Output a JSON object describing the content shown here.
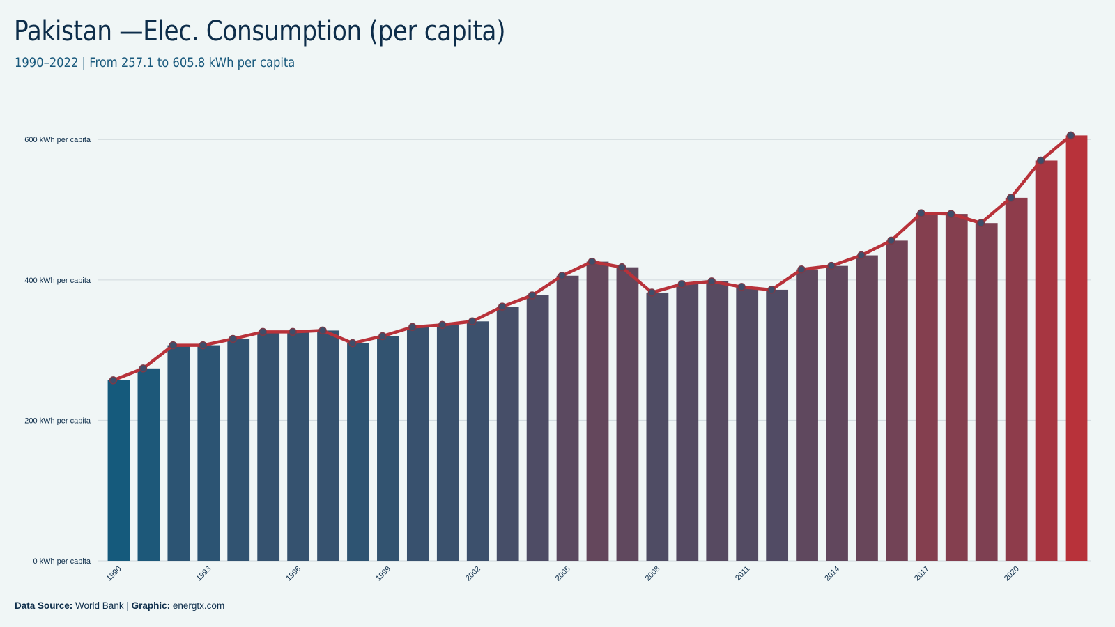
{
  "chart_data": {
    "type": "bar",
    "title": "Pakistan —Elec. Consumption (per capita)",
    "subtitle": "1990–2022 | From 257.1 to 605.8 kWh per capita",
    "x": [
      1990,
      1991,
      1992,
      1993,
      1994,
      1995,
      1996,
      1997,
      1998,
      1999,
      2000,
      2001,
      2002,
      2003,
      2004,
      2005,
      2006,
      2007,
      2008,
      2009,
      2010,
      2011,
      2012,
      2013,
      2014,
      2015,
      2016,
      2017,
      2018,
      2019,
      2020,
      2021,
      2022
    ],
    "x_tick_labels": [
      "1990",
      "1993",
      "1996",
      "1999",
      "2002",
      "2005",
      "2008",
      "2011",
      "2014",
      "2017",
      "2020"
    ],
    "series": [
      {
        "values": [
          257.1,
          274,
          307,
          307,
          316,
          326,
          326,
          328,
          310,
          320,
          333,
          336,
          341,
          362,
          378,
          406,
          426,
          418,
          382,
          394,
          398,
          390,
          386,
          415,
          420,
          435,
          456,
          495,
          494,
          481,
          517,
          570,
          605.8
        ]
      }
    ],
    "overlay_line": true,
    "y_ticks": [
      0,
      200,
      400,
      600
    ],
    "y_tick_labels": [
      "0 kWh per capita",
      "200 kWh per capita",
      "400 kWh per capita",
      "600 kWh per capita"
    ],
    "ylim": [
      0,
      630
    ],
    "grid": "horizontal",
    "xlabel": "",
    "ylabel": ""
  },
  "colors": {
    "background": "#f0f6f6",
    "gradient_start": "#155a7c",
    "gradient_end": "#b8323a",
    "line": "#b8323a",
    "marker_fill": "#3e4e6a",
    "gridline": "#cfd8dc",
    "text": "#0d2d4a"
  },
  "caption": {
    "source_label": "Data Source:",
    "source_value": "World Bank",
    "separator": "|",
    "graphic_label": "Graphic:",
    "graphic_value": "energtx.com"
  }
}
